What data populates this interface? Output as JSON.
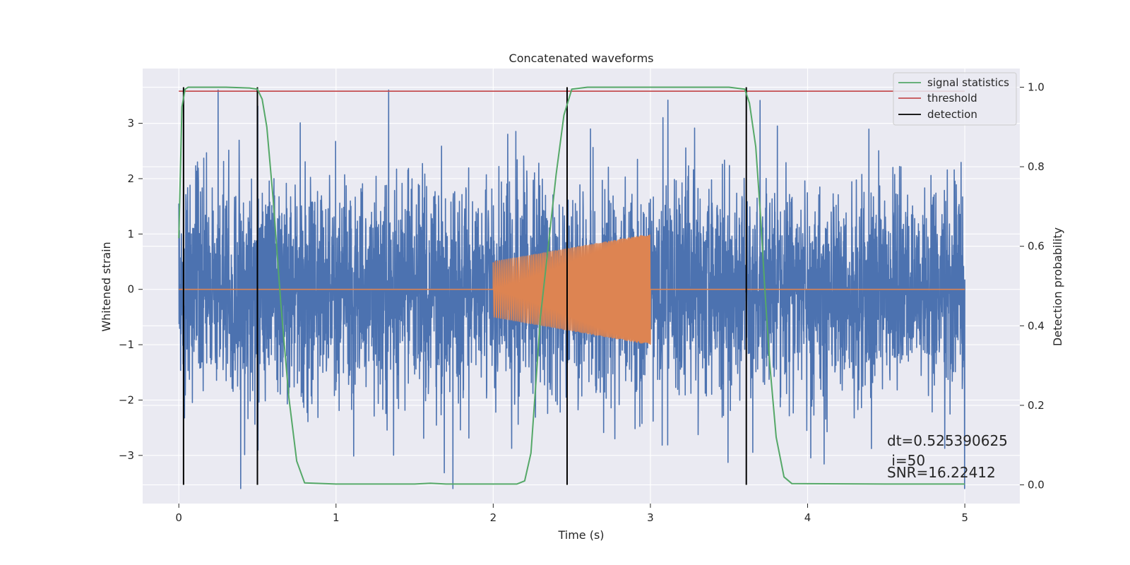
{
  "chart_data": {
    "type": "line",
    "title": "Concatenated waveforms",
    "xlabel": "Time (s)",
    "ylabel": "Whitened strain",
    "y2label": "Detection probability",
    "xlim": [
      -0.23,
      5.35
    ],
    "ylim": [
      -3.87,
      3.99
    ],
    "y2lim": [
      -0.047,
      1.047
    ],
    "x_ticks": [
      0,
      1,
      2,
      3,
      4,
      5
    ],
    "y_ticks": [
      -3,
      -2,
      -1,
      0,
      1,
      2,
      3
    ],
    "y2_ticks": [
      0.0,
      0.2,
      0.4,
      0.6,
      0.8,
      1.0
    ],
    "x_tick_labels": [
      "0",
      "1",
      "2",
      "3",
      "4",
      "5"
    ],
    "y_tick_labels": [
      "−3",
      "−2",
      "−1",
      "0",
      "1",
      "2",
      "3"
    ],
    "y2_tick_labels": [
      "0.0",
      "0.2",
      "0.4",
      "0.6",
      "0.8",
      "1.0"
    ],
    "grid": true,
    "legend_position": "top-right",
    "series": [
      {
        "name": "",
        "kind": "noise",
        "color": "#4c72b0",
        "axis": "left",
        "x_range": [
          0,
          5
        ],
        "typical_amplitude": 1.0,
        "peak_amplitude": 3.6
      },
      {
        "name": "",
        "kind": "chirp",
        "color": "#dd8452",
        "axis": "left",
        "baseline": 0,
        "x_range": [
          0,
          5
        ],
        "chirp_start": 2.0,
        "chirp_end": 3.0,
        "amplitude_start": 0.5,
        "amplitude_end": 1.0
      },
      {
        "name": "signal statistics",
        "color": "#55a868",
        "axis": "right",
        "x": [
          0.0,
          0.02,
          0.04,
          0.06,
          0.1,
          0.3,
          0.45,
          0.5,
          0.53,
          0.56,
          0.6,
          0.65,
          0.7,
          0.75,
          0.8,
          1.0,
          1.5,
          1.6,
          1.7,
          2.0,
          2.15,
          2.2,
          2.24,
          2.27,
          2.3,
          2.35,
          2.4,
          2.45,
          2.5,
          2.6,
          3.0,
          3.5,
          3.6,
          3.63,
          3.67,
          3.7,
          3.73,
          3.76,
          3.8,
          3.85,
          3.9,
          4.5,
          5.0
        ],
        "values": [
          0.62,
          0.95,
          0.995,
          1.0,
          1.0,
          1.0,
          0.998,
          0.995,
          0.97,
          0.9,
          0.72,
          0.45,
          0.22,
          0.06,
          0.005,
          0.002,
          0.002,
          0.004,
          0.002,
          0.002,
          0.002,
          0.01,
          0.08,
          0.25,
          0.42,
          0.6,
          0.78,
          0.93,
          0.995,
          1.0,
          1.0,
          1.0,
          0.995,
          0.96,
          0.85,
          0.68,
          0.48,
          0.3,
          0.12,
          0.02,
          0.003,
          0.002,
          0.002
        ]
      },
      {
        "name": "threshold",
        "color": "#c44e52",
        "axis": "right",
        "x": [
          0,
          5
        ],
        "values": [
          0.99,
          0.99
        ]
      },
      {
        "name": "detection",
        "color": "#000000",
        "axis": "right",
        "x": [
          0.03,
          0.5,
          2.47,
          3.61
        ],
        "y_range": [
          0,
          1
        ]
      }
    ],
    "annotations": [
      "dt=0.525390625",
      " i=50",
      "SNR=16.22412"
    ]
  },
  "colors": {
    "axes_face": "#eaeaf2",
    "grid": "#ffffff",
    "text": "#262626",
    "legend_edge": "#cccccc"
  }
}
